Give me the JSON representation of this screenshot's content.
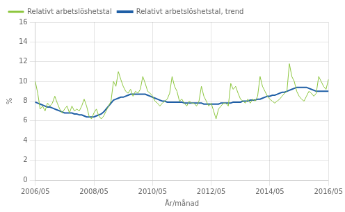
{
  "chart_data": {
    "type": "line",
    "xlabel": "År/månad",
    "ylabel": "%",
    "categories": [
      "2006/05",
      null,
      null,
      null,
      null,
      null,
      null,
      null,
      null,
      null,
      null,
      null,
      null,
      null,
      null,
      null,
      null,
      null,
      null,
      null,
      null,
      null,
      null,
      null,
      "2008/05",
      null,
      null,
      null,
      null,
      null,
      null,
      null,
      null,
      null,
      null,
      null,
      null,
      null,
      null,
      null,
      null,
      null,
      null,
      null,
      null,
      null,
      null,
      null,
      "2010/05",
      null,
      null,
      null,
      null,
      null,
      null,
      null,
      null,
      null,
      null,
      null,
      null,
      null,
      null,
      null,
      null,
      null,
      null,
      null,
      null,
      null,
      null,
      null,
      "2012/05",
      null,
      null,
      null,
      null,
      null,
      null,
      null,
      null,
      null,
      null,
      null,
      null,
      null,
      null,
      null,
      null,
      null,
      null,
      null,
      null,
      null,
      null,
      null,
      "2014/05",
      null,
      null,
      null,
      null,
      null,
      null,
      null,
      null,
      null,
      null,
      null,
      null,
      null,
      null,
      null,
      null,
      null,
      null,
      null,
      null,
      null,
      null,
      null,
      "2016/05"
    ],
    "series": [
      {
        "name": "Relativt arbetslöshetstal",
        "color": "#8dc63f",
        "values": [
          10.0,
          8.8,
          7.2,
          7.5,
          7.0,
          7.8,
          7.5,
          7.8,
          8.5,
          7.8,
          7.2,
          6.8,
          7.2,
          7.5,
          6.8,
          7.5,
          7.0,
          7.2,
          7.0,
          7.5,
          8.2,
          7.5,
          6.5,
          6.2,
          6.8,
          7.2,
          6.5,
          6.2,
          6.5,
          7.0,
          7.5,
          8.0,
          10.0,
          9.5,
          11.0,
          10.2,
          9.5,
          9.0,
          8.8,
          9.2,
          8.5,
          9.0,
          8.8,
          9.2,
          10.5,
          9.8,
          9.0,
          8.8,
          8.5,
          8.0,
          7.8,
          7.5,
          7.8,
          8.0,
          8.2,
          8.8,
          10.5,
          9.5,
          9.0,
          8.0,
          8.2,
          7.8,
          7.5,
          8.0,
          7.8,
          7.8,
          7.5,
          8.0,
          9.5,
          8.5,
          8.0,
          7.5,
          7.8,
          7.0,
          6.2,
          7.2,
          7.5,
          7.8,
          7.8,
          7.5,
          9.8,
          9.2,
          9.5,
          8.8,
          8.2,
          8.0,
          7.8,
          8.2,
          7.8,
          8.2,
          8.0,
          8.5,
          10.5,
          9.5,
          9.0,
          8.5,
          8.2,
          8.0,
          7.8,
          8.0,
          8.2,
          8.5,
          8.8,
          9.0,
          11.8,
          10.5,
          10.0,
          9.0,
          8.5,
          8.2,
          8.0,
          8.5,
          9.0,
          8.8,
          8.5,
          8.8,
          10.5,
          10.0,
          9.5,
          9.2,
          10.2
        ]
      },
      {
        "name": "Relativt arbetslöshetstal, trend",
        "color": "#1f5fa6",
        "values": [
          7.9,
          7.8,
          7.7,
          7.6,
          7.5,
          7.4,
          7.4,
          7.3,
          7.2,
          7.1,
          7.0,
          6.9,
          6.8,
          6.8,
          6.8,
          6.8,
          6.7,
          6.7,
          6.6,
          6.6,
          6.5,
          6.4,
          6.4,
          6.4,
          6.4,
          6.5,
          6.6,
          6.7,
          6.9,
          7.2,
          7.5,
          7.8,
          8.1,
          8.2,
          8.3,
          8.4,
          8.4,
          8.5,
          8.6,
          8.7,
          8.7,
          8.7,
          8.7,
          8.7,
          8.7,
          8.7,
          8.6,
          8.5,
          8.4,
          8.3,
          8.2,
          8.1,
          8.0,
          8.0,
          7.9,
          7.9,
          7.9,
          7.9,
          7.9,
          7.9,
          7.9,
          7.8,
          7.8,
          7.8,
          7.8,
          7.8,
          7.8,
          7.8,
          7.8,
          7.7,
          7.7,
          7.7,
          7.7,
          7.7,
          7.7,
          7.7,
          7.8,
          7.8,
          7.8,
          7.8,
          7.8,
          7.9,
          7.9,
          7.9,
          7.9,
          8.0,
          8.0,
          8.0,
          8.1,
          8.1,
          8.1,
          8.2,
          8.2,
          8.3,
          8.4,
          8.5,
          8.5,
          8.6,
          8.6,
          8.7,
          8.8,
          8.9,
          8.9,
          9.0,
          9.1,
          9.2,
          9.3,
          9.4,
          9.4,
          9.4,
          9.4,
          9.4,
          9.3,
          9.2,
          9.1,
          9.0,
          9.0,
          9.0,
          9.0,
          9.0,
          9.0
        ]
      }
    ],
    "ylim": [
      0,
      16
    ],
    "yticks": [
      0,
      2,
      4,
      6,
      8,
      10,
      12,
      14,
      16
    ],
    "grid": true,
    "legend": "upper left"
  }
}
